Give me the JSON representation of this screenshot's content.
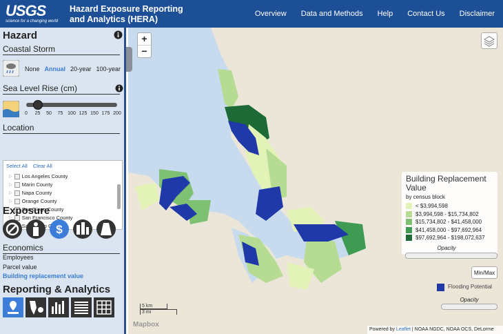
{
  "header": {
    "logo": "USGS",
    "tagline": "science for a changing world",
    "title_line1": "Hazard Exposure Reporting",
    "title_line2": "and Analytics (HERA)",
    "nav": [
      "Overview",
      "Data and Methods",
      "Help",
      "Contact Us",
      "Disclaimer"
    ]
  },
  "sidebar": {
    "hazard": {
      "title": "Hazard",
      "type": "Coastal Storm",
      "options": [
        "None",
        "Annual",
        "20-year",
        "100-year"
      ],
      "selected_index": 1
    },
    "sea_level": {
      "title": "Sea Level Rise (cm)",
      "ticks": [
        0,
        25,
        50,
        75,
        100,
        125,
        150,
        175,
        200
      ],
      "value": 25
    },
    "location": {
      "title": "Location",
      "select_all": "Select All",
      "clear_all": "Clear All",
      "counties": [
        "Los Angeles County",
        "Marin County",
        "Napa County",
        "Orange County",
        "San Diego County",
        "San Francisco County",
        "San Mateo County"
      ]
    },
    "exposure": {
      "title": "Exposure"
    },
    "economics": {
      "title": "Economics",
      "items": [
        "Employees",
        "Parcel value",
        "Building replacement value"
      ],
      "selected_index": 2
    },
    "reporting": {
      "title": "Reporting & Analytics"
    }
  },
  "map": {
    "zoom_in": "+",
    "zoom_out": "−",
    "legend": {
      "title": "Building Replacement Value",
      "subtitle": "by census block",
      "items": [
        {
          "label": "< $3,994,598",
          "color": "#e3f2b6"
        },
        {
          "label": "$3,994,598 - $15,734,802",
          "color": "#b5dc92"
        },
        {
          "label": "$15,734,802 - $41,458,000",
          "color": "#7fc173"
        },
        {
          "label": "$41,458,000 - $97,692,964",
          "color": "#3f9a53"
        },
        {
          "label": "$97,692,964 - $198,072,637",
          "color": "#1d6a36"
        }
      ],
      "opacity": "Opacity",
      "minmax": "Min/Max"
    },
    "flood": {
      "label": "Flooding Potential",
      "color": "#1f3aa8",
      "opacity": "Opacity"
    },
    "scale": {
      "km": "5 km",
      "mi": "3 mi"
    },
    "brand": "Mapbox",
    "attribution": {
      "prefix": "Powered by",
      "link": "Leaflet",
      "sources": "| NOAA NGDC, NOAA OCS, DeLorme"
    }
  }
}
